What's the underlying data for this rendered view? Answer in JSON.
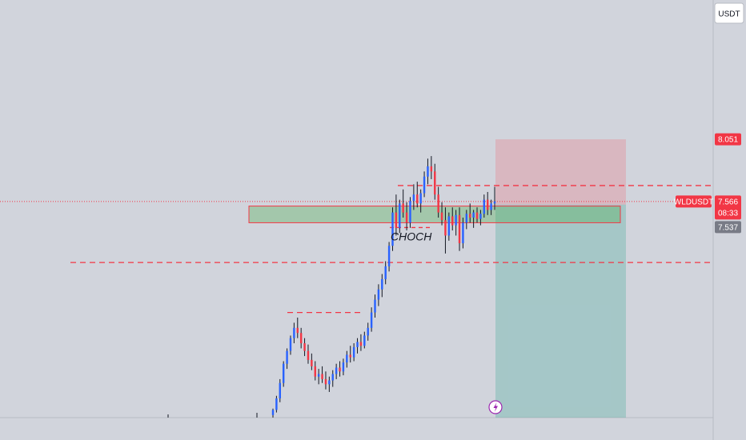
{
  "chart_data": {
    "type": "candlestick",
    "symbol_label": "WLDUSDT",
    "quote_currency": "USDT",
    "y_range": [
      5.88,
      9.1
    ],
    "price_current": 7.566,
    "countdown": "08:33",
    "price_stop": 8.051,
    "price_entry": 7.537,
    "annotation": "CHOCH",
    "x_range": [
      0,
      1
    ],
    "levels": [
      {
        "name": "demand-zone-top",
        "value": 7.53
      },
      {
        "name": "demand-zone-bottom",
        "value": 7.4
      },
      {
        "name": "support-dashed",
        "value": 7.09
      },
      {
        "name": "resistance-dashed",
        "value": 7.69
      },
      {
        "name": "swing-dashed",
        "value": 6.7
      }
    ],
    "candles": [
      {
        "o": 5.9,
        "h": 5.95,
        "l": 5.88,
        "c": 5.94
      },
      {
        "o": 5.94,
        "h": 6.05,
        "l": 5.92,
        "c": 6.03
      },
      {
        "o": 6.03,
        "h": 6.18,
        "l": 6.0,
        "c": 6.15
      },
      {
        "o": 6.15,
        "h": 6.32,
        "l": 6.12,
        "c": 6.3
      },
      {
        "o": 6.3,
        "h": 6.42,
        "l": 6.26,
        "c": 6.4
      },
      {
        "o": 6.4,
        "h": 6.52,
        "l": 6.37,
        "c": 6.5
      },
      {
        "o": 6.5,
        "h": 6.62,
        "l": 6.46,
        "c": 6.58
      },
      {
        "o": 6.58,
        "h": 6.66,
        "l": 6.5,
        "c": 6.54
      },
      {
        "o": 6.54,
        "h": 6.58,
        "l": 6.42,
        "c": 6.46
      },
      {
        "o": 6.46,
        "h": 6.5,
        "l": 6.36,
        "c": 6.4
      },
      {
        "o": 6.4,
        "h": 6.45,
        "l": 6.3,
        "c": 6.33
      },
      {
        "o": 6.33,
        "h": 6.38,
        "l": 6.25,
        "c": 6.28
      },
      {
        "o": 6.28,
        "h": 6.32,
        "l": 6.17,
        "c": 6.2
      },
      {
        "o": 6.2,
        "h": 6.26,
        "l": 6.14,
        "c": 6.22
      },
      {
        "o": 6.22,
        "h": 6.28,
        "l": 6.15,
        "c": 6.18
      },
      {
        "o": 6.18,
        "h": 6.24,
        "l": 6.1,
        "c": 6.14
      },
      {
        "o": 6.14,
        "h": 6.2,
        "l": 6.08,
        "c": 6.17
      },
      {
        "o": 6.17,
        "h": 6.25,
        "l": 6.12,
        "c": 6.22
      },
      {
        "o": 6.22,
        "h": 6.3,
        "l": 6.18,
        "c": 6.27
      },
      {
        "o": 6.27,
        "h": 6.32,
        "l": 6.2,
        "c": 6.24
      },
      {
        "o": 6.24,
        "h": 6.34,
        "l": 6.21,
        "c": 6.31
      },
      {
        "o": 6.31,
        "h": 6.4,
        "l": 6.27,
        "c": 6.37
      },
      {
        "o": 6.37,
        "h": 6.44,
        "l": 6.31,
        "c": 6.35
      },
      {
        "o": 6.35,
        "h": 6.46,
        "l": 6.32,
        "c": 6.43
      },
      {
        "o": 6.43,
        "h": 6.5,
        "l": 6.38,
        "c": 6.47
      },
      {
        "o": 6.47,
        "h": 6.53,
        "l": 6.4,
        "c": 6.44
      },
      {
        "o": 6.44,
        "h": 6.55,
        "l": 6.42,
        "c": 6.52
      },
      {
        "o": 6.52,
        "h": 6.62,
        "l": 6.48,
        "c": 6.58
      },
      {
        "o": 6.58,
        "h": 6.74,
        "l": 6.55,
        "c": 6.7
      },
      {
        "o": 6.7,
        "h": 6.84,
        "l": 6.66,
        "c": 6.8
      },
      {
        "o": 6.8,
        "h": 6.92,
        "l": 6.75,
        "c": 6.88
      },
      {
        "o": 6.88,
        "h": 7.0,
        "l": 6.82,
        "c": 6.96
      },
      {
        "o": 6.96,
        "h": 7.1,
        "l": 6.92,
        "c": 7.06
      },
      {
        "o": 7.06,
        "h": 7.25,
        "l": 7.02,
        "c": 7.22
      },
      {
        "o": 7.22,
        "h": 7.52,
        "l": 7.18,
        "c": 7.48
      },
      {
        "o": 7.48,
        "h": 7.62,
        "l": 7.3,
        "c": 7.36
      },
      {
        "o": 7.36,
        "h": 7.58,
        "l": 7.32,
        "c": 7.55
      },
      {
        "o": 7.55,
        "h": 7.66,
        "l": 7.44,
        "c": 7.48
      },
      {
        "o": 7.48,
        "h": 7.56,
        "l": 7.34,
        "c": 7.4
      },
      {
        "o": 7.4,
        "h": 7.6,
        "l": 7.36,
        "c": 7.57
      },
      {
        "o": 7.57,
        "h": 7.7,
        "l": 7.5,
        "c": 7.62
      },
      {
        "o": 7.62,
        "h": 7.72,
        "l": 7.52,
        "c": 7.55
      },
      {
        "o": 7.55,
        "h": 7.66,
        "l": 7.48,
        "c": 7.63
      },
      {
        "o": 7.63,
        "h": 7.8,
        "l": 7.6,
        "c": 7.76
      },
      {
        "o": 7.76,
        "h": 7.9,
        "l": 7.7,
        "c": 7.84
      },
      {
        "o": 7.84,
        "h": 7.92,
        "l": 7.74,
        "c": 7.8
      },
      {
        "o": 7.8,
        "h": 7.86,
        "l": 7.58,
        "c": 7.62
      },
      {
        "o": 7.62,
        "h": 7.68,
        "l": 7.44,
        "c": 7.48
      },
      {
        "o": 7.48,
        "h": 7.56,
        "l": 7.38,
        "c": 7.42
      },
      {
        "o": 7.42,
        "h": 7.52,
        "l": 7.16,
        "c": 7.3
      },
      {
        "o": 7.3,
        "h": 7.48,
        "l": 7.26,
        "c": 7.45
      },
      {
        "o": 7.45,
        "h": 7.52,
        "l": 7.34,
        "c": 7.38
      },
      {
        "o": 7.38,
        "h": 7.5,
        "l": 7.3,
        "c": 7.46
      },
      {
        "o": 7.46,
        "h": 7.52,
        "l": 7.18,
        "c": 7.24
      },
      {
        "o": 7.24,
        "h": 7.44,
        "l": 7.2,
        "c": 7.4
      },
      {
        "o": 7.4,
        "h": 7.5,
        "l": 7.35,
        "c": 7.47
      },
      {
        "o": 7.47,
        "h": 7.55,
        "l": 7.4,
        "c": 7.44
      },
      {
        "o": 7.44,
        "h": 7.5,
        "l": 7.36,
        "c": 7.48
      },
      {
        "o": 7.48,
        "h": 7.52,
        "l": 7.4,
        "c": 7.43
      },
      {
        "o": 7.43,
        "h": 7.5,
        "l": 7.38,
        "c": 7.47
      },
      {
        "o": 7.47,
        "h": 7.62,
        "l": 7.44,
        "c": 7.58
      },
      {
        "o": 7.58,
        "h": 7.64,
        "l": 7.46,
        "c": 7.5
      },
      {
        "o": 7.5,
        "h": 7.58,
        "l": 7.46,
        "c": 7.55
      },
      {
        "o": 7.55,
        "h": 7.68,
        "l": 7.5,
        "c": 7.566
      }
    ]
  }
}
